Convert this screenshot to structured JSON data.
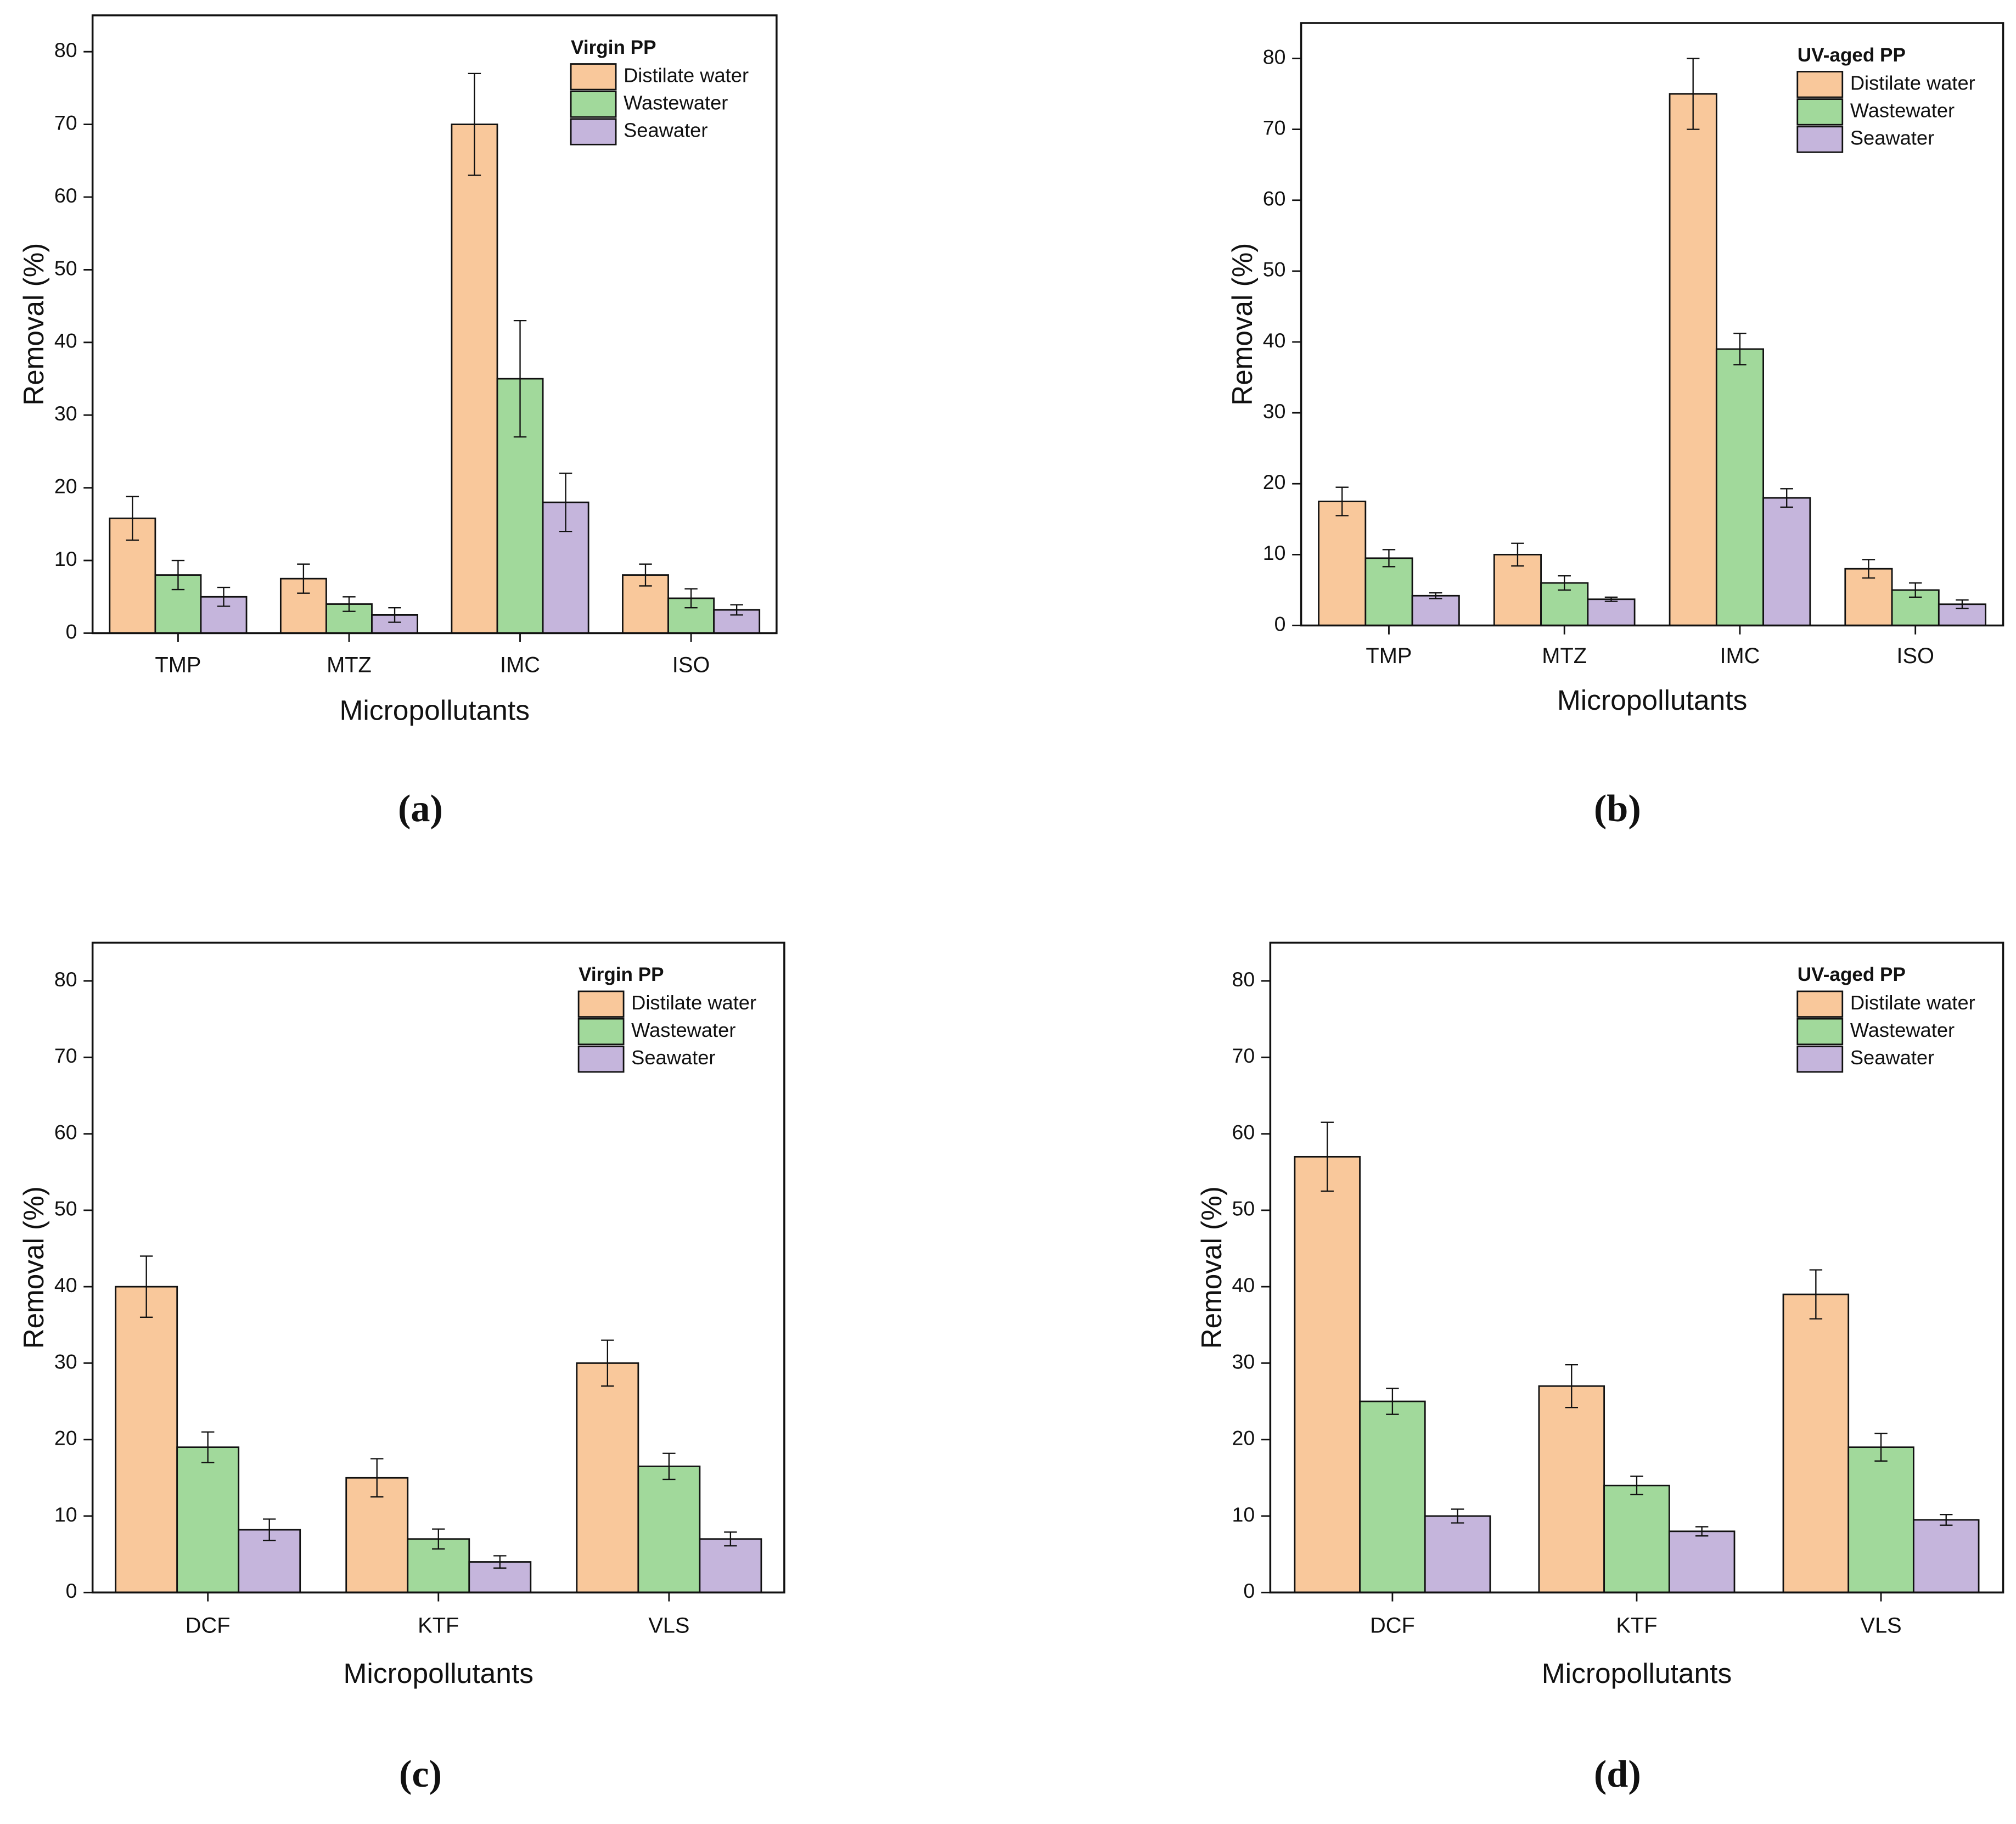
{
  "chart_data": [
    {
      "type": "bar",
      "panel_label": "(a)",
      "legend_title": "Virgin PP",
      "x_label": "Micropollutants",
      "y_label": "Removal (%)",
      "categories": [
        "TMP",
        "MTZ",
        "IMC",
        "ISO"
      ],
      "series": [
        {
          "name": "Distilate water",
          "color": "#f9c89b",
          "values": [
            15.8,
            7.5,
            70,
            8
          ],
          "errors": [
            3,
            2,
            7,
            1.5
          ]
        },
        {
          "name": "Wastewater",
          "color": "#a1d99b",
          "values": [
            8,
            4,
            35,
            4.8
          ],
          "errors": [
            2,
            1,
            8,
            1.3
          ]
        },
        {
          "name": "Seawater",
          "color": "#c5b5dc",
          "values": [
            5,
            2.5,
            18,
            3.2
          ],
          "errors": [
            1.3,
            1,
            4,
            0.7
          ]
        }
      ],
      "ylim": [
        0,
        85
      ],
      "yticks": [
        0,
        10,
        20,
        30,
        40,
        50,
        60,
        70,
        80
      ],
      "legend": "upper right"
    },
    {
      "type": "bar",
      "panel_label": "(b)",
      "legend_title": "UV-aged PP",
      "x_label": "Micropollutants",
      "y_label": "Removal (%)",
      "categories": [
        "TMP",
        "MTZ",
        "IMC",
        "ISO"
      ],
      "series": [
        {
          "name": "Distilate water",
          "color": "#f9c89b",
          "values": [
            17.5,
            10,
            75,
            8
          ],
          "errors": [
            2,
            1.6,
            5,
            1.3
          ]
        },
        {
          "name": "Wastewater",
          "color": "#a1d99b",
          "values": [
            9.5,
            6,
            39,
            5
          ],
          "errors": [
            1.2,
            1,
            2.2,
            1
          ]
        },
        {
          "name": "Seawater",
          "color": "#c5b5dc",
          "values": [
            4.2,
            3.7,
            18,
            3
          ],
          "errors": [
            0.4,
            0.3,
            1.3,
            0.6
          ]
        }
      ],
      "ylim": [
        0,
        85
      ],
      "yticks": [
        0,
        10,
        20,
        30,
        40,
        50,
        60,
        70,
        80
      ],
      "legend": "upper right"
    },
    {
      "type": "bar",
      "panel_label": "(c)",
      "legend_title": "Virgin PP",
      "x_label": "Micropollutants",
      "y_label": "Removal (%)",
      "categories": [
        "DCF",
        "KTF",
        "VLS"
      ],
      "series": [
        {
          "name": "Distilate water",
          "color": "#f9c89b",
          "values": [
            40,
            15,
            30
          ],
          "errors": [
            4,
            2.5,
            3
          ]
        },
        {
          "name": "Wastewater",
          "color": "#a1d99b",
          "values": [
            19,
            7,
            16.5
          ],
          "errors": [
            2,
            1.3,
            1.7
          ]
        },
        {
          "name": "Seawater",
          "color": "#c5b5dc",
          "values": [
            8.2,
            4,
            7
          ],
          "errors": [
            1.4,
            0.8,
            0.9
          ]
        }
      ],
      "ylim": [
        0,
        85
      ],
      "yticks": [
        0,
        10,
        20,
        30,
        40,
        50,
        60,
        70,
        80
      ],
      "legend": "upper right"
    },
    {
      "type": "bar",
      "panel_label": "(d)",
      "legend_title": "UV-aged PP",
      "x_label": "Micropollutants",
      "y_label": "Removal (%)",
      "categories": [
        "DCF",
        "KTF",
        "VLS"
      ],
      "series": [
        {
          "name": "Distilate water",
          "color": "#f9c89b",
          "values": [
            57,
            27,
            39
          ],
          "errors": [
            4.5,
            2.8,
            3.2
          ]
        },
        {
          "name": "Wastewater",
          "color": "#a1d99b",
          "values": [
            25,
            14,
            19
          ],
          "errors": [
            1.7,
            1.2,
            1.8
          ]
        },
        {
          "name": "Seawater",
          "color": "#c5b5dc",
          "values": [
            10,
            8,
            9.5
          ],
          "errors": [
            0.9,
            0.6,
            0.7
          ]
        }
      ],
      "ylim": [
        0,
        85
      ],
      "yticks": [
        0,
        10,
        20,
        30,
        40,
        50,
        60,
        70,
        80
      ],
      "legend": "upper right"
    }
  ]
}
